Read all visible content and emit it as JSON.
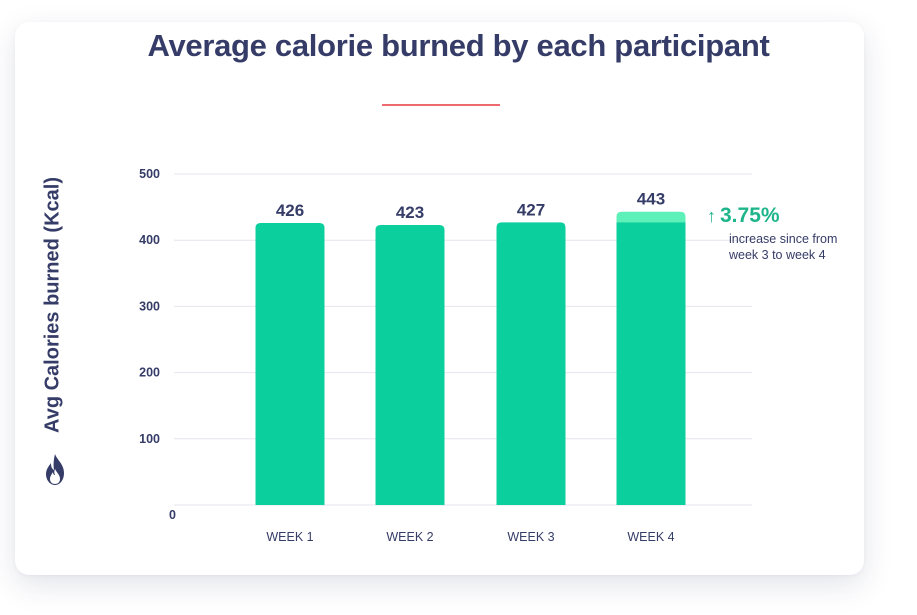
{
  "colors": {
    "title": "#353c67",
    "bar": "#0ccf9e",
    "bar_increase": "#5ef0b9",
    "accent_underline": "#ee6a6e",
    "callout": "#1fb58a",
    "grid": "#e4e6ee"
  },
  "icons": {
    "y_axis_icon": "flame-icon",
    "callout_icon": "arrow-up-icon"
  },
  "callout": {
    "value": "3.75%",
    "note": "increase since from week 3 to week 4"
  },
  "chart_data": {
    "type": "bar",
    "title": "Average calorie burned by each participant",
    "xlabel": "",
    "ylabel": "Avg Calories burned (Kcal)",
    "categories": [
      "WEEK 1",
      "WEEK 2",
      "WEEK 3",
      "WEEK 4"
    ],
    "values": [
      426,
      423,
      427,
      443
    ],
    "ylim": [
      0,
      500
    ],
    "yticks": [
      0,
      100,
      200,
      300,
      400,
      500
    ],
    "grid": true,
    "highlight": {
      "category": "WEEK 4",
      "from": 427,
      "to": 443
    }
  }
}
